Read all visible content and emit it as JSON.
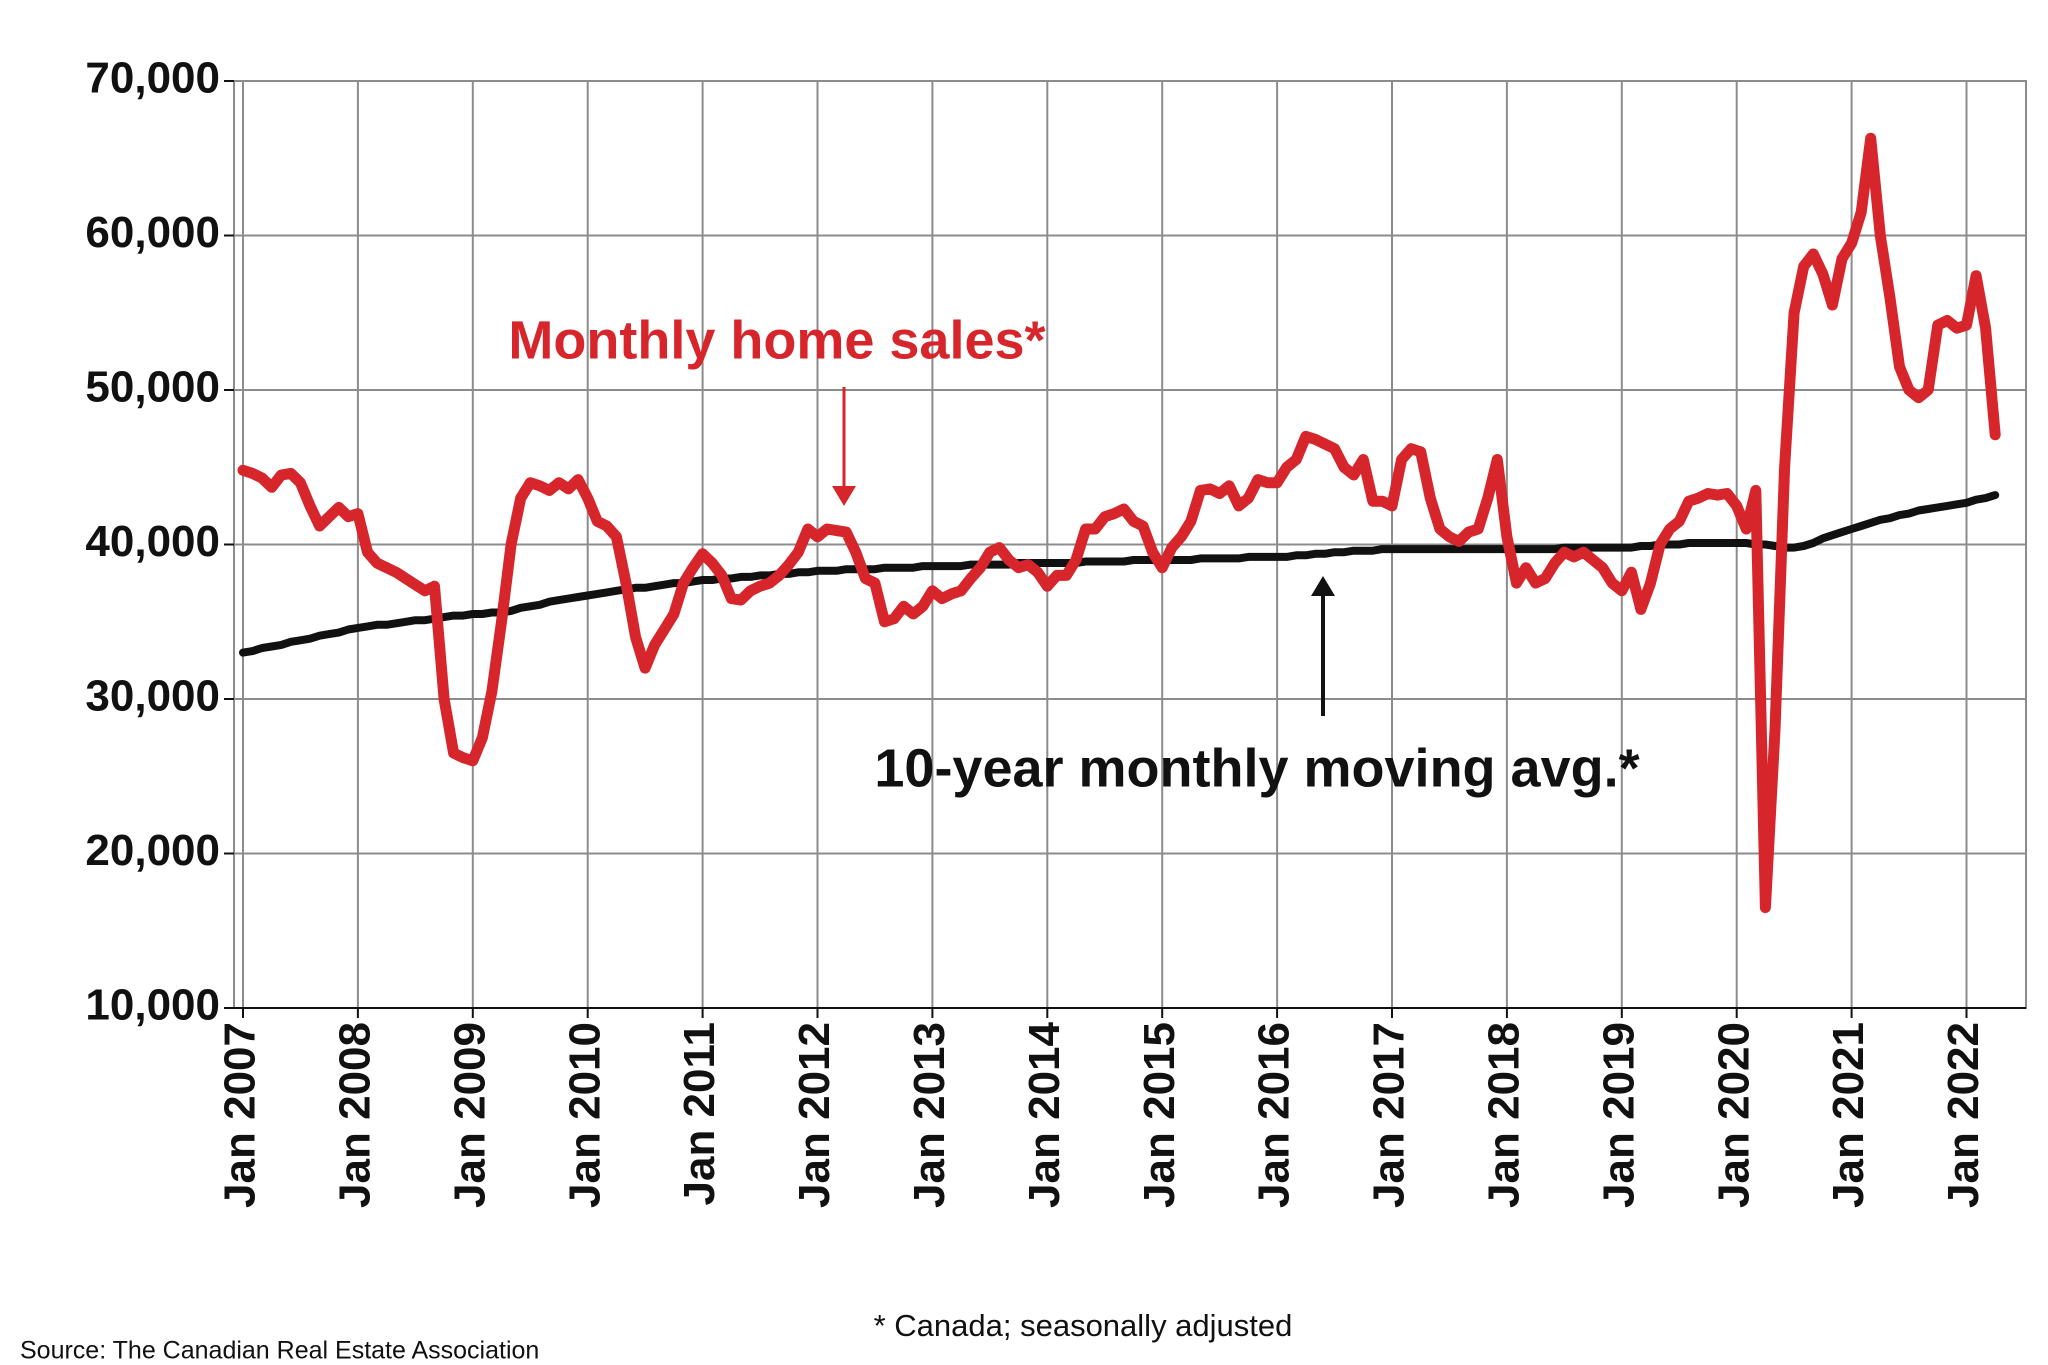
{
  "chart_data": {
    "type": "line",
    "annotations": [
      "Monthly home sales*",
      "10-year monthly moving avg.*",
      "* Canada; seasonally adjusted",
      "Source: The Canadian Real Estate Association"
    ],
    "categories": [
      "Jan 2007",
      null,
      null,
      null,
      null,
      null,
      null,
      null,
      null,
      null,
      null,
      null,
      "Jan 2008",
      null,
      null,
      null,
      null,
      null,
      null,
      null,
      null,
      null,
      null,
      null,
      "Jan 2009",
      null,
      null,
      null,
      null,
      null,
      null,
      null,
      null,
      null,
      null,
      null,
      "Jan 2010",
      null,
      null,
      null,
      null,
      null,
      null,
      null,
      null,
      null,
      null,
      null,
      "Jan 2011",
      null,
      null,
      null,
      null,
      null,
      null,
      null,
      null,
      null,
      null,
      null,
      "Jan 2012",
      null,
      null,
      null,
      null,
      null,
      null,
      null,
      null,
      null,
      null,
      null,
      "Jan 2013",
      null,
      null,
      null,
      null,
      null,
      null,
      null,
      null,
      null,
      null,
      null,
      "Jan 2014",
      null,
      null,
      null,
      null,
      null,
      null,
      null,
      null,
      null,
      null,
      null,
      "Jan 2015",
      null,
      null,
      null,
      null,
      null,
      null,
      null,
      null,
      null,
      null,
      null,
      "Jan 2016",
      null,
      null,
      null,
      null,
      null,
      null,
      null,
      null,
      null,
      null,
      null,
      "Jan 2017",
      null,
      null,
      null,
      null,
      null,
      null,
      null,
      null,
      null,
      null,
      null,
      "Jan 2018",
      null,
      null,
      null,
      null,
      null,
      null,
      null,
      null,
      null,
      null,
      null,
      "Jan 2019",
      null,
      null,
      null,
      null,
      null,
      null,
      null,
      null,
      null,
      null,
      null,
      "Jan 2020",
      null,
      null,
      null,
      null,
      null,
      null,
      null,
      null,
      null,
      null,
      null,
      "Jan 2021",
      null,
      null,
      null,
      null,
      null,
      null,
      null,
      null,
      null,
      null,
      null,
      "Jan 2022",
      null,
      null,
      null
    ],
    "series": [
      {
        "name": "Monthly home sales*",
        "color": "#d7262b",
        "values": [
          44800,
          44600,
          44300,
          43700,
          44500,
          44600,
          44000,
          42500,
          41200,
          41800,
          42400,
          41800,
          42000,
          39500,
          38800,
          38500,
          38200,
          37800,
          37400,
          37000,
          37300,
          30000,
          26500,
          26200,
          26000,
          27500,
          30500,
          35000,
          40000,
          43000,
          44000,
          43800,
          43500,
          44000,
          43600,
          44200,
          43000,
          41500,
          41200,
          40500,
          37500,
          34000,
          32000,
          33500,
          34500,
          35500,
          37500,
          38500,
          39400,
          38800,
          38000,
          36500,
          36400,
          37000,
          37300,
          37500,
          38000,
          38700,
          39500,
          41000,
          40500,
          41000,
          40900,
          40800,
          39500,
          37800,
          37500,
          35000,
          35200,
          36000,
          35500,
          36000,
          37000,
          36500,
          36800,
          37000,
          37800,
          38500,
          39500,
          39800,
          39000,
          38500,
          38700,
          38200,
          37300,
          38000,
          38000,
          39000,
          41000,
          41000,
          41800,
          42000,
          42300,
          41500,
          41200,
          39500,
          38500,
          39800,
          40500,
          41500,
          43500,
          43600,
          43300,
          43800,
          42500,
          43000,
          44200,
          44000,
          44000,
          45000,
          45500,
          47000,
          46800,
          46500,
          46200,
          45000,
          44500,
          45500,
          42800,
          42800,
          42500,
          45500,
          46200,
          46000,
          43000,
          41000,
          40500,
          40200,
          40800,
          41000,
          43000,
          45500,
          40500,
          37500,
          38500,
          37500,
          37800,
          38800,
          39500,
          39200,
          39500,
          39000,
          38500,
          37500,
          37000,
          38200,
          35800,
          37500,
          40000,
          41000,
          41500,
          42800,
          43000,
          43300,
          43200,
          43300,
          42500,
          41000,
          43500,
          16500,
          28000,
          45000,
          55000,
          58000,
          58800,
          57500,
          55500,
          58500,
          59500,
          61500,
          66300,
          60000,
          56000,
          51500,
          50000,
          49500,
          50000,
          54200,
          54500,
          54000,
          54200,
          57400,
          54000,
          47100
        ]
      },
      {
        "name": "10-year monthly moving avg.*",
        "color": "#111111",
        "values": [
          33000,
          33100,
          33300,
          33400,
          33500,
          33700,
          33800,
          33900,
          34100,
          34200,
          34300,
          34500,
          34600,
          34700,
          34800,
          34800,
          34900,
          35000,
          35100,
          35100,
          35200,
          35300,
          35400,
          35400,
          35500,
          35500,
          35600,
          35600,
          35700,
          35900,
          36000,
          36100,
          36300,
          36400,
          36500,
          36600,
          36700,
          36800,
          36900,
          37000,
          37100,
          37200,
          37200,
          37300,
          37400,
          37500,
          37500,
          37600,
          37700,
          37700,
          37800,
          37800,
          37900,
          37900,
          38000,
          38000,
          38100,
          38100,
          38200,
          38200,
          38300,
          38300,
          38300,
          38400,
          38400,
          38400,
          38400,
          38500,
          38500,
          38500,
          38500,
          38600,
          38600,
          38600,
          38600,
          38600,
          38700,
          38700,
          38700,
          38700,
          38700,
          38800,
          38800,
          38800,
          38800,
          38800,
          38800,
          38800,
          38900,
          38900,
          38900,
          38900,
          38900,
          39000,
          39000,
          39000,
          39000,
          39000,
          39000,
          39000,
          39100,
          39100,
          39100,
          39100,
          39100,
          39200,
          39200,
          39200,
          39200,
          39200,
          39300,
          39300,
          39400,
          39400,
          39500,
          39500,
          39600,
          39600,
          39600,
          39700,
          39700,
          39700,
          39700,
          39700,
          39700,
          39700,
          39700,
          39700,
          39700,
          39700,
          39700,
          39700,
          39700,
          39700,
          39700,
          39700,
          39700,
          39700,
          39800,
          39800,
          39800,
          39800,
          39800,
          39800,
          39800,
          39800,
          39900,
          39900,
          40000,
          40000,
          40000,
          40100,
          40100,
          40100,
          40100,
          40100,
          40100,
          40100,
          40000,
          40000,
          39900,
          39800,
          39800,
          39900,
          40100,
          40400,
          40600,
          40800,
          41000,
          41200,
          41400,
          41600,
          41700,
          41900,
          42000,
          42200,
          42300,
          42400,
          42500,
          42600,
          42700,
          42900,
          43000,
          43200
        ]
      }
    ],
    "ylim": [
      10000,
      70000
    ],
    "yticks": [
      {
        "value": 10000,
        "label": "10,000"
      },
      {
        "value": 20000,
        "label": "20,000"
      },
      {
        "value": 30000,
        "label": "30,000"
      },
      {
        "value": 40000,
        "label": "40,000"
      },
      {
        "value": 50000,
        "label": "50,000"
      },
      {
        "value": 60000,
        "label": "60,000"
      },
      {
        "value": 70000,
        "label": "70,000"
      }
    ],
    "grid": true
  }
}
